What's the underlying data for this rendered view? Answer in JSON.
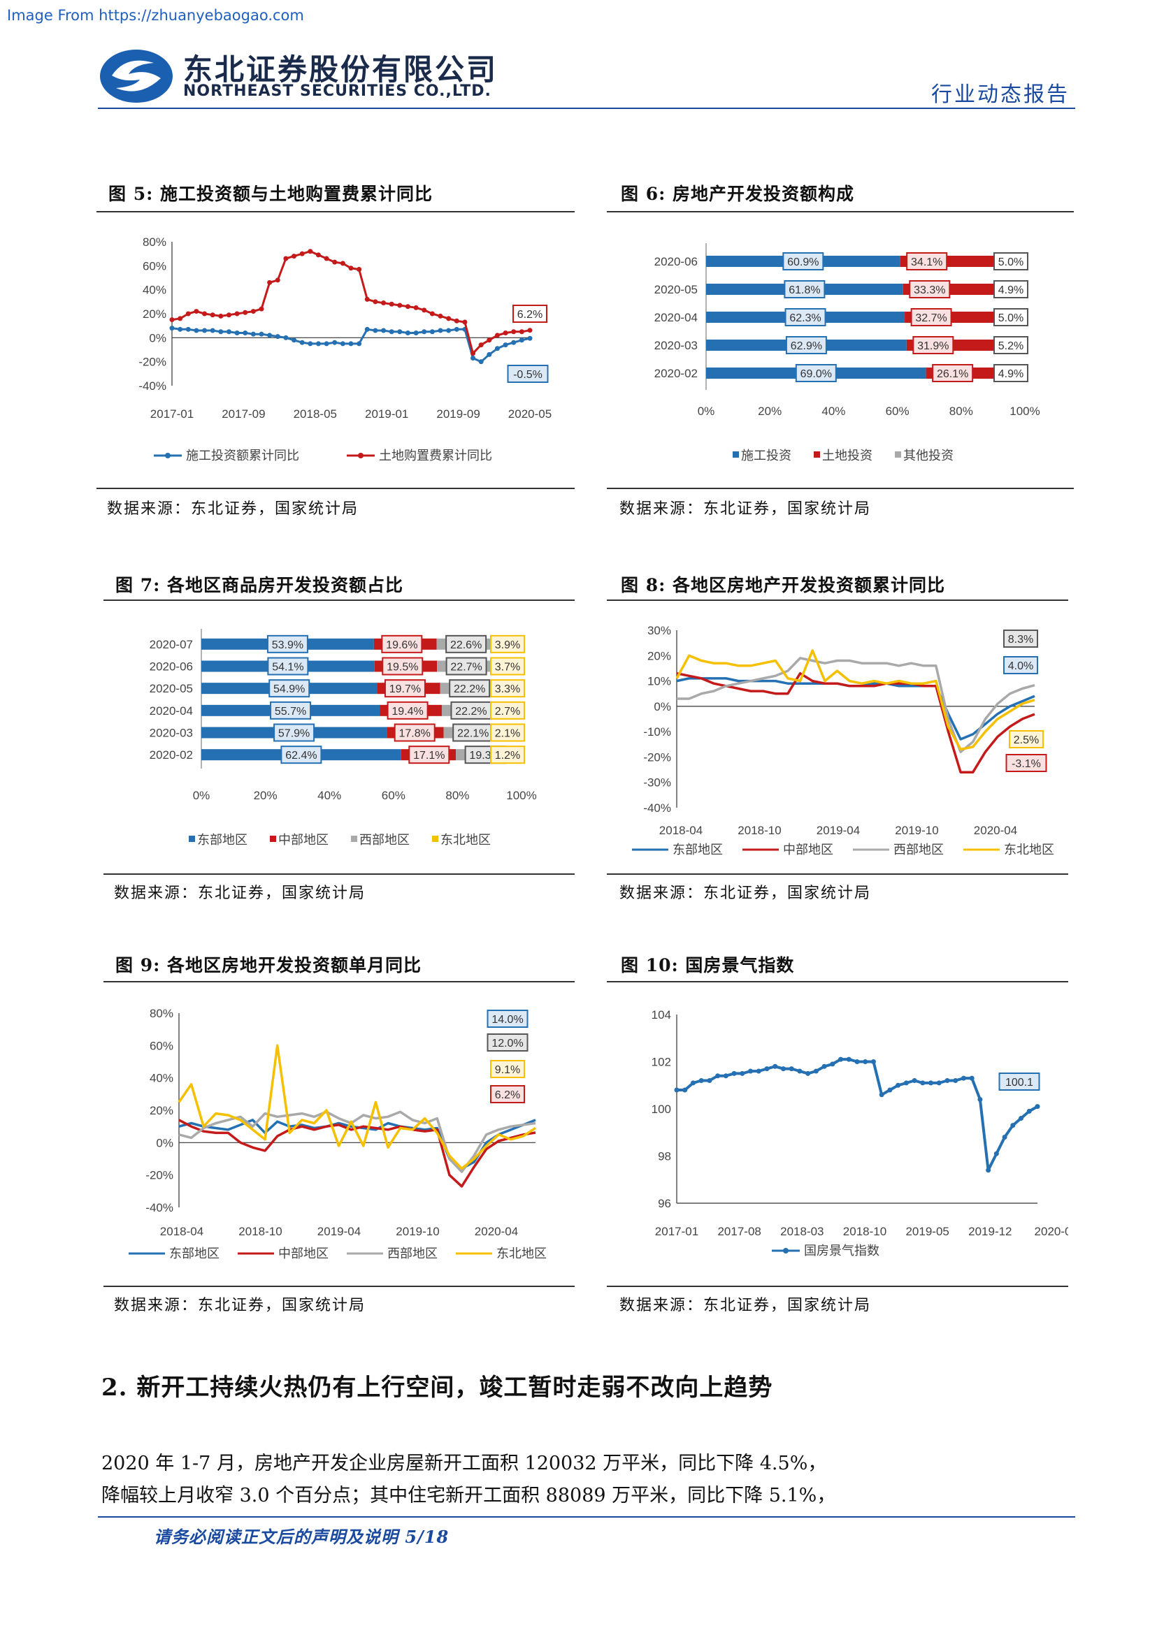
{
  "source_link": "Image From https://zhuanyebaogao.com",
  "header": {
    "company_cn": "东北证券股份有限公司",
    "company_en": "NORTHEAST SECURITIES CO.,LTD.",
    "report_type": "行业动态报告",
    "logo_icon": "northeast-securities-logo"
  },
  "colors": {
    "blue": "#2470b2",
    "red": "#c41a1a",
    "gray": "#a9a9a9",
    "yellow": "#f5c000",
    "brand": "#1a4aa0"
  },
  "figures": [
    {
      "title": "图 5: 施工投资额与土地购置费累计同比",
      "source": "数据来源：东北证券，国家统计局",
      "chart_data": {
        "type": "line",
        "ylim": [
          -40,
          80
        ],
        "y_ticks": [
          "80%",
          "60%",
          "40%",
          "20%",
          "0%",
          "-20%",
          "-40%"
        ],
        "x_ticks": [
          "2017-01",
          "2017-09",
          "2018-05",
          "2019-01",
          "2019-09",
          "2020-05"
        ],
        "series": [
          {
            "name": "施工投资额累计同比",
            "color": "#2470b2",
            "values": [
              8,
              7,
              7,
              6,
              6,
              6,
              5,
              5,
              4,
              4,
              3,
              3,
              2,
              1,
              0,
              -2,
              -4,
              -5,
              -5,
              -5,
              -4,
              -5,
              -5,
              -5,
              7,
              6,
              6,
              5,
              5,
              4,
              4,
              5,
              5,
              6,
              6,
              7,
              7,
              -17,
              -20,
              -14,
              -9,
              -6,
              -4,
              -2,
              -0.5
            ],
            "end_label": "-0.5%"
          },
          {
            "name": "土地购置费累计同比",
            "color": "#c41a1a",
            "values": [
              15,
              16,
              20,
              22,
              20,
              19,
              18,
              19,
              20,
              21,
              22,
              24,
              46,
              48,
              66,
              68,
              70,
              72,
              69,
              66,
              63,
              62,
              58,
              57,
              32,
              30,
              29,
              28,
              27,
              26,
              25,
              23,
              20,
              18,
              16,
              14,
              13,
              -13,
              -6,
              -2,
              2,
              4,
              5,
              5,
              6.2
            ],
            "end_label": "6.2%"
          }
        ]
      }
    },
    {
      "title": "图 6: 房地产开发投资额构成",
      "source": "数据来源：东北证券，国家统计局",
      "chart_data": {
        "type": "bar",
        "orientation": "horizontal-stacked-100",
        "categories": [
          "2020-06",
          "2020-05",
          "2020-04",
          "2020-03",
          "2020-02"
        ],
        "x_ticks": [
          "0%",
          "20%",
          "40%",
          "60%",
          "80%",
          "100%"
        ],
        "series": [
          {
            "name": "施工投资",
            "color": "#2470b2",
            "values": [
              60.9,
              61.8,
              62.3,
              62.9,
              69.0
            ],
            "labels": [
              "60.9%",
              "61.8%",
              "62.3%",
              "62.9%",
              "69.0%"
            ]
          },
          {
            "name": "土地投资",
            "color": "#c41a1a",
            "values": [
              34.1,
              33.3,
              32.7,
              31.9,
              26.1
            ],
            "labels": [
              "34.1%",
              "33.3%",
              "32.7%",
              "31.9%",
              "26.1%"
            ]
          },
          {
            "name": "其他投资",
            "color": "#a9a9a9",
            "values": [
              5.0,
              4.9,
              5.0,
              5.2,
              4.9
            ],
            "labels": [
              "5.0%",
              "4.9%",
              "5.0%",
              "5.2%",
              "4.9%"
            ]
          }
        ]
      }
    },
    {
      "title": "图 7: 各地区商品房开发投资额占比",
      "source": "数据来源：东北证券，国家统计局",
      "chart_data": {
        "type": "bar",
        "orientation": "horizontal-stacked-100",
        "categories": [
          "2020-07",
          "2020-06",
          "2020-05",
          "2020-04",
          "2020-03",
          "2020-02"
        ],
        "x_ticks": [
          "0%",
          "20%",
          "40%",
          "60%",
          "80%",
          "100%"
        ],
        "series": [
          {
            "name": "东部地区",
            "color": "#2470b2",
            "values": [
              53.9,
              54.1,
              54.9,
              55.7,
              57.9,
              62.4
            ],
            "labels": [
              "53.9%",
              "54.1%",
              "54.9%",
              "55.7%",
              "57.9%",
              "62.4%"
            ]
          },
          {
            "name": "中部地区",
            "color": "#c41a1a",
            "values": [
              19.6,
              19.5,
              19.7,
              19.4,
              17.8,
              17.1
            ],
            "labels": [
              "19.6%",
              "19.5%",
              "19.7%",
              "19.4%",
              "17.8%",
              "17.1%"
            ]
          },
          {
            "name": "西部地区",
            "color": "#a9a9a9",
            "values": [
              22.6,
              22.7,
              22.2,
              22.2,
              22.1,
              19.3
            ],
            "labels": [
              "22.6%",
              "22.7%",
              "22.2%",
              "22.2%",
              "22.1%",
              "19.3%"
            ]
          },
          {
            "name": "东北地区",
            "color": "#f5c000",
            "values": [
              3.9,
              3.7,
              3.3,
              2.7,
              2.1,
              1.2
            ],
            "labels": [
              "3.9%",
              "3.7%",
              "3.3%",
              "2.7%",
              "2.1%",
              "1.2%"
            ]
          }
        ]
      }
    },
    {
      "title": "图 8: 各地区房地产开发投资额累计同比",
      "source": "数据来源：东北证券，国家统计局",
      "chart_data": {
        "type": "line",
        "ylim": [
          -40,
          30
        ],
        "y_ticks": [
          "30%",
          "20%",
          "10%",
          "0%",
          "-10%",
          "-20%",
          "-30%",
          "-40%"
        ],
        "x_ticks": [
          "2018-04",
          "2018-10",
          "2019-04",
          "2019-10",
          "2020-04"
        ],
        "series": [
          {
            "name": "东部地区",
            "color": "#2470b2",
            "values": [
              10,
              11,
              11,
              11,
              11,
              10,
              10,
              10,
              10,
              9,
              9,
              9,
              9,
              9,
              8,
              8,
              9,
              9,
              8,
              8,
              8,
              8,
              -3,
              -13,
              -11,
              -7,
              -3,
              0,
              2,
              4
            ],
            "end_label": "4.0%"
          },
          {
            "name": "中部地区",
            "color": "#c41a1a",
            "values": [
              13,
              12,
              11,
              9,
              8,
              7,
              6,
              6,
              5,
              5,
              13,
              10,
              9,
              9,
              8,
              8,
              8,
              9,
              9,
              9,
              8,
              8,
              -10,
              -26,
              -26,
              -18,
              -12,
              -8,
              -5,
              -3.1
            ],
            "end_label": "-3.1%"
          },
          {
            "name": "西部地区",
            "color": "#a9a9a9",
            "values": [
              3,
              3,
              5,
              6,
              8,
              9,
              10,
              11,
              12,
              14,
              19,
              18,
              17,
              18,
              18,
              17,
              17,
              17,
              16,
              17,
              16,
              16,
              -5,
              -18,
              -14,
              -5,
              1,
              5,
              7,
              8.3
            ],
            "end_label": "8.3%"
          },
          {
            "name": "东北地区",
            "color": "#f5c000",
            "values": [
              11,
              20,
              18,
              17,
              17,
              16,
              16,
              17,
              18,
              11,
              10,
              22,
              10,
              14,
              10,
              9,
              10,
              9,
              10,
              9,
              9,
              10,
              -8,
              -17,
              -16,
              -10,
              -5,
              -2,
              1,
              2.5
            ],
            "end_label": "2.5%"
          }
        ]
      }
    },
    {
      "title": "图 9: 各地区房地开发投资额单月同比",
      "source": "数据来源：东北证券，国家统计局",
      "chart_data": {
        "type": "line",
        "ylim": [
          -40,
          80
        ],
        "y_ticks": [
          "80%",
          "60%",
          "40%",
          "20%",
          "0%",
          "-20%",
          "-40%"
        ],
        "x_ticks": [
          "2018-04",
          "2018-10",
          "2019-04",
          "2019-10",
          "2020-04"
        ],
        "series": [
          {
            "name": "东部地区",
            "color": "#2470b2",
            "values": [
              10,
              12,
              10,
              9,
              8,
              11,
              14,
              6,
              13,
              10,
              11,
              9,
              10,
              12,
              10,
              9,
              8,
              12,
              10,
              9,
              8,
              9,
              -10,
              -16,
              -12,
              0,
              5,
              8,
              11,
              14
            ],
            "end_label": "14.0%"
          },
          {
            "name": "中部地区",
            "color": "#c41a1a",
            "values": [
              14,
              10,
              7,
              6,
              6,
              0,
              -3,
              -5,
              4,
              8,
              10,
              8,
              10,
              11,
              8,
              10,
              9,
              8,
              10,
              8,
              7,
              8,
              -20,
              -27,
              -15,
              -4,
              1,
              3,
              5,
              6.2
            ],
            "end_label": "6.2%"
          },
          {
            "name": "西部地区",
            "color": "#a9a9a9",
            "values": [
              5,
              3,
              9,
              12,
              14,
              16,
              10,
              18,
              16,
              17,
              18,
              16,
              19,
              15,
              12,
              17,
              15,
              16,
              19,
              14,
              12,
              15,
              -10,
              -18,
              -8,
              5,
              8,
              10,
              11,
              12
            ],
            "end_label": "12.0%"
          },
          {
            "name": "东北地区",
            "color": "#f5c000",
            "values": [
              25,
              36,
              10,
              18,
              17,
              14,
              8,
              2,
              60,
              6,
              14,
              12,
              20,
              -2,
              13,
              -2,
              25,
              -3,
              9,
              8,
              15,
              6,
              -8,
              -16,
              -10,
              -2,
              5,
              2,
              4,
              9.1
            ],
            "end_label": "9.1%"
          }
        ]
      }
    },
    {
      "title": "图 10: 国房景气指数",
      "source": "数据来源：东北证券，国家统计局",
      "chart_data": {
        "type": "line",
        "ylim": [
          96,
          104
        ],
        "y_ticks": [
          "104",
          "102",
          "100",
          "98",
          "96"
        ],
        "x_ticks": [
          "2017-01",
          "2017-08",
          "2018-03",
          "2018-10",
          "2019-05",
          "2019-12",
          "2020-0"
        ],
        "series": [
          {
            "name": "国房景气指数",
            "color": "#2470b2",
            "values": [
              100.8,
              100.8,
              101.1,
              101.2,
              101.2,
              101.4,
              101.4,
              101.5,
              101.5,
              101.6,
              101.6,
              101.7,
              101.8,
              101.7,
              101.7,
              101.6,
              101.5,
              101.6,
              101.8,
              101.9,
              102.1,
              102.1,
              102.0,
              102.0,
              102.0,
              100.6,
              100.8,
              101.0,
              101.1,
              101.2,
              101.1,
              101.1,
              101.1,
              101.2,
              101.2,
              101.3,
              101.3,
              100.4,
              97.4,
              98.1,
              98.8,
              99.3,
              99.6,
              99.9,
              100.1
            ],
            "end_label": "100.1"
          }
        ]
      }
    }
  ],
  "section": {
    "heading": "2. 新开工持续火热仍有上行空间，竣工暂时走弱不改向上趋势",
    "paragraph_lines": [
      "2020 年 1-7 月，房地产开发企业房屋新开工面积 120032 万平米，同比下降 4.5%，",
      "降幅较上月收窄 3.0 个百分点；其中住宅新开工面积 88089 万平米，同比下降 5.1%，"
    ]
  },
  "footer": {
    "text": "请务必阅读正文后的声明及说明 5/18"
  }
}
